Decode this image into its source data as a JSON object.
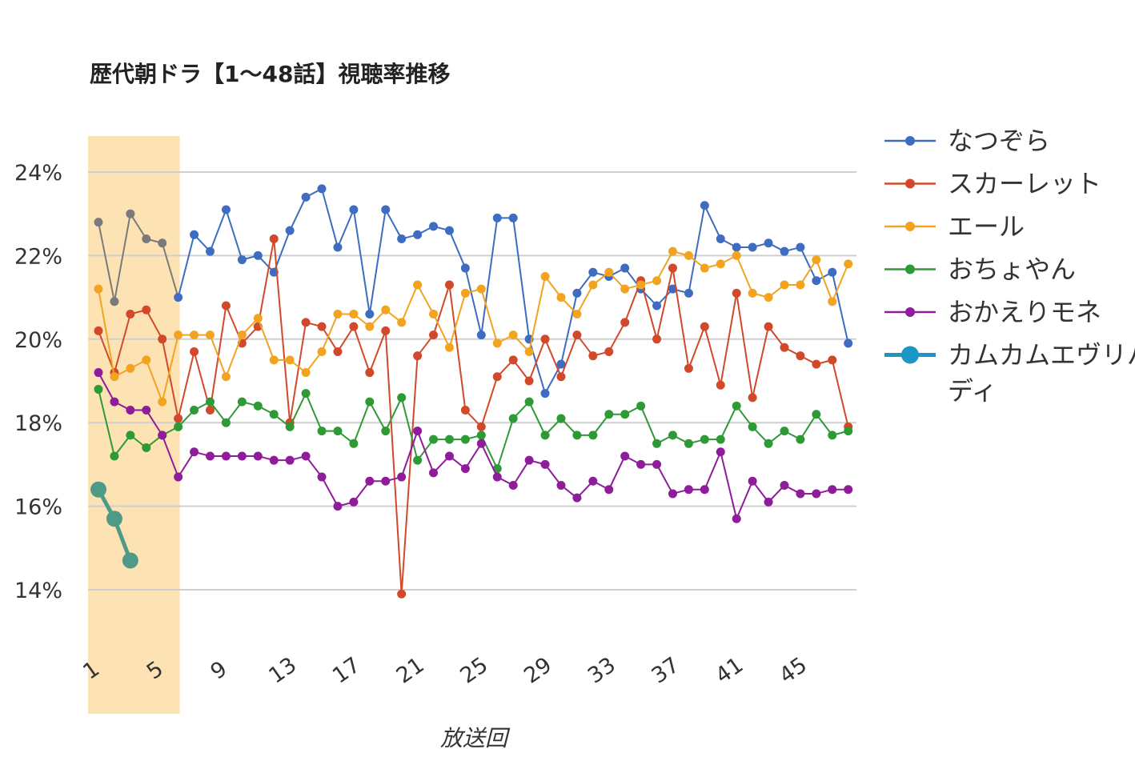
{
  "chart_data": {
    "type": "line",
    "title": "歴代朝ドラ【1〜48話】視聴率推移",
    "xlabel": "放送回",
    "ylabel": "",
    "ylim": [
      12.5,
      25.0
    ],
    "xlim": [
      1,
      48
    ],
    "yticks": [
      14,
      16,
      18,
      20,
      22,
      24
    ],
    "ytick_labels": [
      "14%",
      "16%",
      "18%",
      "20%",
      "22%",
      "24%"
    ],
    "xticks": [
      "1",
      "5",
      "9",
      "13",
      "17",
      "21",
      "25",
      "29",
      "33",
      "37",
      "41",
      "45"
    ],
    "grid": true,
    "legend_position": "right",
    "highlight_band": {
      "from": 0.5,
      "to": 6.0,
      "color": "#fde3b3"
    },
    "series": [
      {
        "name": "なつぞら",
        "color": "#3d6cc0",
        "early_color": "#7a7a7a",
        "values": [
          22.8,
          20.9,
          23.0,
          22.4,
          22.3,
          21.0,
          22.5,
          22.1,
          23.1,
          21.9,
          22.0,
          21.6,
          22.6,
          23.4,
          23.6,
          22.2,
          23.1,
          20.6,
          23.1,
          22.4,
          22.5,
          22.7,
          22.6,
          21.7,
          20.1,
          22.9,
          22.9,
          20.0,
          18.7,
          19.4,
          21.1,
          21.6,
          21.5,
          21.7,
          21.2,
          20.8,
          21.2,
          21.1,
          23.2,
          22.4,
          22.2,
          22.2,
          22.3,
          22.1,
          22.2,
          21.4,
          21.6,
          19.9
        ]
      },
      {
        "name": "スカーレット",
        "color": "#d1492a",
        "values": [
          20.2,
          19.2,
          20.6,
          20.7,
          20.0,
          18.1,
          19.7,
          18.3,
          20.8,
          19.9,
          20.3,
          22.4,
          18.0,
          20.4,
          20.3,
          19.7,
          20.3,
          19.2,
          20.2,
          13.9,
          19.6,
          20.1,
          21.3,
          18.3,
          17.9,
          19.1,
          19.5,
          19.0,
          20.0,
          19.1,
          20.1,
          19.6,
          19.7,
          20.4,
          21.4,
          20.0,
          21.7,
          19.3,
          20.3,
          18.9,
          21.1,
          18.6,
          20.3,
          19.8,
          19.6,
          19.4,
          19.5,
          17.9
        ]
      },
      {
        "name": "エール",
        "color": "#f2a31f",
        "values": [
          21.2,
          19.1,
          19.3,
          19.5,
          18.5,
          20.1,
          20.1,
          20.1,
          19.1,
          20.1,
          20.5,
          19.5,
          19.5,
          19.2,
          19.7,
          20.6,
          20.6,
          20.3,
          20.7,
          20.4,
          21.3,
          20.6,
          19.8,
          21.1,
          21.2,
          19.9,
          20.1,
          19.7,
          21.5,
          21.0,
          20.6,
          21.3,
          21.6,
          21.2,
          21.3,
          21.4,
          22.1,
          22.0,
          21.7,
          21.8,
          22.0,
          21.1,
          21.0,
          21.3,
          21.3,
          21.9,
          20.9,
          21.8
        ]
      },
      {
        "name": "おちょやん",
        "color": "#2e9a35",
        "values": [
          18.8,
          17.2,
          17.7,
          17.4,
          17.7,
          17.9,
          18.3,
          18.5,
          18.0,
          18.5,
          18.4,
          18.2,
          17.9,
          18.7,
          17.8,
          17.8,
          17.5,
          18.5,
          17.8,
          18.6,
          17.1,
          17.6,
          17.6,
          17.6,
          17.7,
          16.9,
          18.1,
          18.5,
          17.7,
          18.1,
          17.7,
          17.7,
          18.2,
          18.2,
          18.4,
          17.5,
          17.7,
          17.5,
          17.6,
          17.6,
          18.4,
          17.9,
          17.5,
          17.8,
          17.6,
          18.2,
          17.7,
          17.8
        ]
      },
      {
        "name": "おかえりモネ",
        "color": "#8f1c9a",
        "values": [
          19.2,
          18.5,
          18.3,
          18.3,
          17.7,
          16.7,
          17.3,
          17.2,
          17.2,
          17.2,
          17.2,
          17.1,
          17.1,
          17.2,
          16.7,
          16.0,
          16.1,
          16.6,
          16.6,
          16.7,
          17.8,
          16.8,
          17.2,
          16.9,
          17.5,
          16.7,
          16.5,
          17.1,
          17.0,
          16.5,
          16.2,
          16.6,
          16.4,
          17.2,
          17.0,
          17.0,
          16.3,
          16.4,
          16.4,
          17.3,
          15.7,
          16.6,
          16.1,
          16.5,
          16.3,
          16.3,
          16.4,
          16.4
        ]
      },
      {
        "name": "カムカムエヴリバディ",
        "color": "#1b97c6",
        "marker_color": "#4f9a86",
        "values": [
          16.4,
          15.7,
          14.7
        ]
      }
    ]
  }
}
